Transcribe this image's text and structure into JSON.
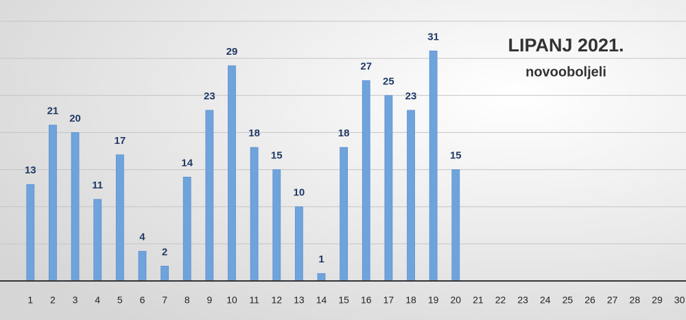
{
  "chart_data": {
    "type": "bar",
    "title": "LIPANJ 2021.",
    "subtitle": "novooboljeli",
    "categories": [
      "1",
      "2",
      "3",
      "4",
      "5",
      "6",
      "7",
      "8",
      "9",
      "10",
      "11",
      "12",
      "13",
      "14",
      "15",
      "16",
      "17",
      "18",
      "19",
      "20",
      "21",
      "22",
      "23",
      "24",
      "25",
      "26",
      "27",
      "28",
      "29",
      "30"
    ],
    "values": [
      13,
      21,
      20,
      11,
      17,
      4,
      2,
      14,
      23,
      29,
      18,
      15,
      10,
      1,
      18,
      27,
      25,
      23,
      31,
      15,
      null,
      null,
      null,
      null,
      null,
      null,
      null,
      null,
      null,
      null
    ],
    "color": "#6fa3dc",
    "ylim": [
      0,
      35
    ],
    "yticks": [
      0,
      5,
      10,
      15,
      20,
      25,
      30,
      35
    ],
    "grid": true
  }
}
